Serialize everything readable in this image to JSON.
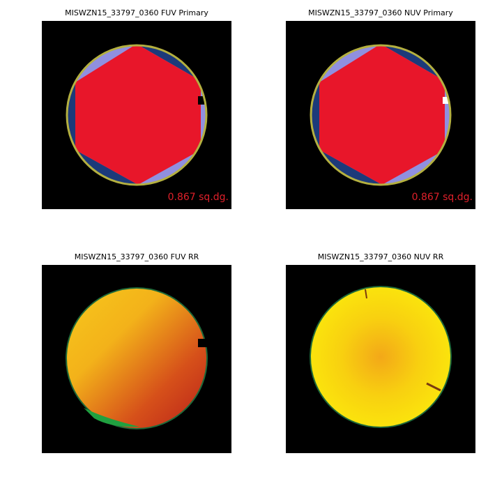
{
  "panels": [
    {
      "title": "MISWZN15_33797_0360 FUV Primary",
      "label": "0.867 sq.dg."
    },
    {
      "title": "MISWZN15_33797_0360 NUV Primary",
      "label": "0.867 sq.dg."
    },
    {
      "title": "MISWZN15_33797_0360 FUV RR"
    },
    {
      "title": "MISWZN15_33797_0360 NUV RR"
    }
  ]
}
